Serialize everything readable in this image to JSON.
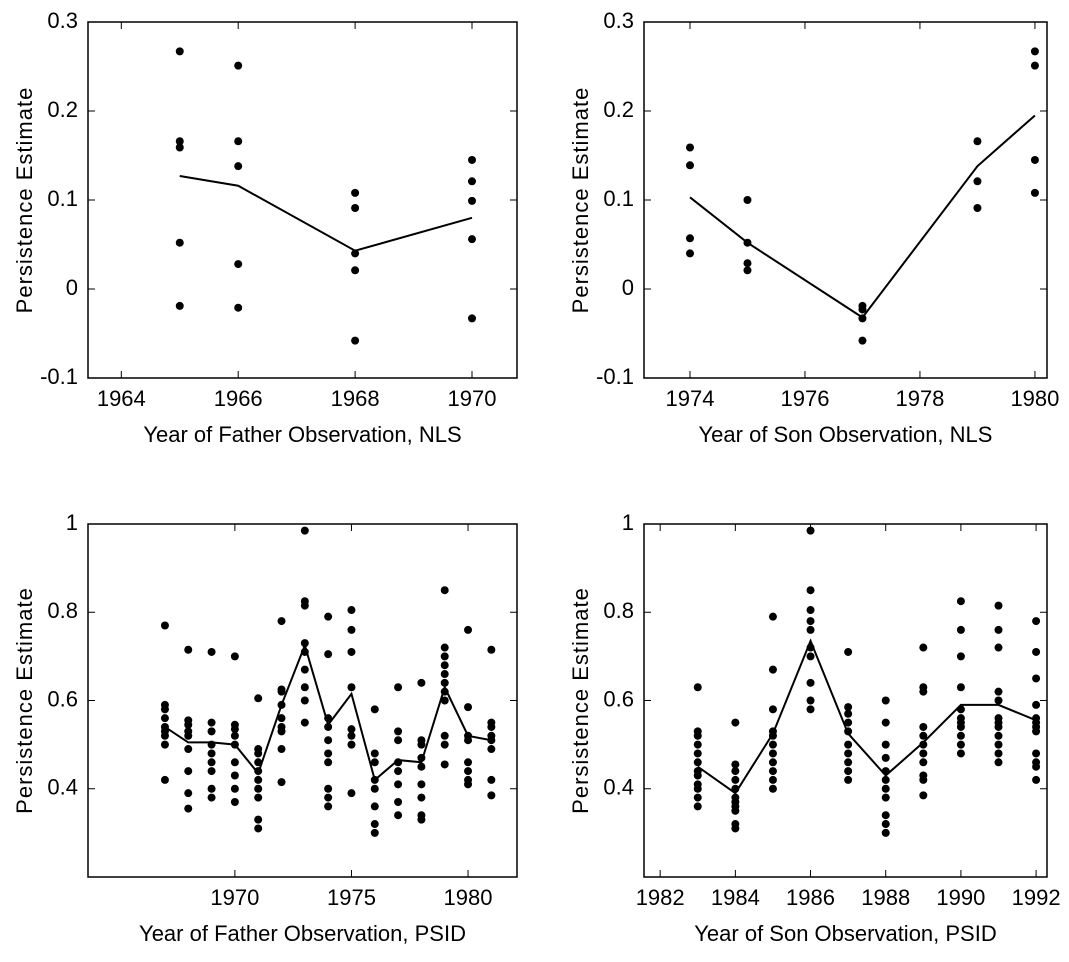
{
  "chart_data": [
    {
      "type": "scatter",
      "xlabel": "Year of Father Observation, NLS",
      "ylabel": "Persistence Estimate",
      "color": "#000000",
      "xlim": [
        1963.43,
        1970.77
      ],
      "ylim": [
        -0.1,
        0.3
      ],
      "xticks": [
        1964,
        1966,
        1968,
        1970
      ],
      "yticks": [
        -0.1,
        0,
        0.1,
        0.2,
        0.3
      ],
      "points": [
        {
          "x": 1965,
          "values": [
            0.267,
            0.166,
            0.159,
            0.052,
            -0.019
          ]
        },
        {
          "x": 1966,
          "values": [
            0.251,
            0.166,
            0.138,
            0.028,
            -0.021
          ]
        },
        {
          "x": 1968,
          "values": [
            0.108,
            0.091,
            0.04,
            0.021,
            -0.058
          ]
        },
        {
          "x": 1970,
          "values": [
            0.145,
            0.121,
            0.099,
            0.056,
            -0.033
          ]
        }
      ],
      "line": {
        "x": [
          1965,
          1966,
          1968,
          1970
        ],
        "y": [
          0.127,
          0.116,
          0.043,
          0.08
        ]
      }
    },
    {
      "type": "scatter",
      "xlabel": "Year of Son Observation, NLS",
      "ylabel": "Persistence Estimate",
      "color": "#000000",
      "xlim": [
        1973.2,
        1980.21
      ],
      "ylim": [
        -0.1,
        0.3
      ],
      "xticks": [
        1974,
        1976,
        1978,
        1980
      ],
      "yticks": [
        -0.1,
        0,
        0.1,
        0.2,
        0.3
      ],
      "points": [
        {
          "x": 1974,
          "values": [
            0.159,
            0.139,
            0.057,
            0.04
          ]
        },
        {
          "x": 1975,
          "values": [
            0.1,
            0.052,
            0.029,
            0.021
          ]
        },
        {
          "x": 1977,
          "values": [
            -0.019,
            -0.023,
            -0.033,
            -0.058
          ]
        },
        {
          "x": 1979,
          "values": [
            0.166,
            0.121,
            0.091
          ]
        },
        {
          "x": 1980,
          "values": [
            0.267,
            0.251,
            0.145,
            0.108
          ]
        }
      ],
      "line": {
        "x": [
          1974,
          1975,
          1977,
          1979,
          1980
        ],
        "y": [
          0.103,
          0.052,
          -0.032,
          0.138,
          0.195
        ]
      }
    },
    {
      "type": "scatter",
      "xlabel": "Year of Father Observation, PSID",
      "ylabel": "Persistence Estimate",
      "color": "#000000",
      "xlim": [
        1963.7,
        1982.1
      ],
      "ylim": [
        0.2,
        1
      ],
      "xticks": [
        1970,
        1975,
        1980
      ],
      "yticks": [
        0.4,
        0.6,
        0.8,
        1
      ],
      "points": [
        {
          "x": 1967,
          "values": [
            0.77,
            0.59,
            0.58,
            0.56,
            0.54,
            0.53,
            0.52,
            0.5,
            0.42
          ]
        },
        {
          "x": 1968,
          "values": [
            0.715,
            0.555,
            0.545,
            0.53,
            0.52,
            0.49,
            0.44,
            0.39,
            0.355
          ]
        },
        {
          "x": 1969,
          "values": [
            0.71,
            0.55,
            0.53,
            0.5,
            0.48,
            0.46,
            0.44,
            0.4,
            0.38
          ]
        },
        {
          "x": 1970,
          "values": [
            0.7,
            0.545,
            0.535,
            0.52,
            0.5,
            0.46,
            0.43,
            0.4,
            0.37
          ]
        },
        {
          "x": 1971,
          "values": [
            0.605,
            0.49,
            0.48,
            0.46,
            0.44,
            0.42,
            0.4,
            0.38,
            0.33,
            0.31
          ]
        },
        {
          "x": 1972,
          "values": [
            0.78,
            0.625,
            0.62,
            0.59,
            0.56,
            0.54,
            0.53,
            0.49,
            0.415
          ]
        },
        {
          "x": 1973,
          "values": [
            0.985,
            0.825,
            0.815,
            0.73,
            0.71,
            0.67,
            0.63,
            0.6,
            0.55
          ]
        },
        {
          "x": 1974,
          "values": [
            0.79,
            0.705,
            0.56,
            0.54,
            0.51,
            0.48,
            0.46,
            0.4,
            0.38,
            0.36
          ]
        },
        {
          "x": 1975,
          "values": [
            0.805,
            0.76,
            0.71,
            0.63,
            0.535,
            0.52,
            0.5,
            0.39
          ]
        },
        {
          "x": 1976,
          "values": [
            0.58,
            0.48,
            0.46,
            0.42,
            0.4,
            0.36,
            0.32,
            0.3
          ]
        },
        {
          "x": 1977,
          "values": [
            0.63,
            0.53,
            0.51,
            0.46,
            0.44,
            0.41,
            0.37,
            0.34
          ]
        },
        {
          "x": 1978,
          "values": [
            0.64,
            0.51,
            0.5,
            0.47,
            0.45,
            0.41,
            0.38,
            0.34,
            0.33
          ]
        },
        {
          "x": 1979,
          "values": [
            0.85,
            0.72,
            0.7,
            0.68,
            0.66,
            0.64,
            0.62,
            0.6,
            0.52,
            0.5,
            0.455
          ]
        },
        {
          "x": 1980,
          "values": [
            0.76,
            0.585,
            0.52,
            0.51,
            0.46,
            0.44,
            0.42,
            0.41
          ]
        },
        {
          "x": 1981,
          "values": [
            0.715,
            0.55,
            0.54,
            0.52,
            0.51,
            0.49,
            0.42,
            0.385
          ]
        }
      ],
      "line": {
        "x": [
          1967,
          1968,
          1969,
          1970,
          1971,
          1972,
          1973,
          1974,
          1975,
          1976,
          1977,
          1978,
          1979,
          1980,
          1981
        ],
        "y": [
          0.54,
          0.505,
          0.505,
          0.5,
          0.435,
          0.59,
          0.725,
          0.545,
          0.615,
          0.42,
          0.465,
          0.46,
          0.63,
          0.52,
          0.51
        ]
      }
    },
    {
      "type": "scatter",
      "xlabel": "Year of Son Observation, PSID",
      "ylabel": "Persistence Estimate",
      "color": "#000000",
      "xlim": [
        1981.57,
        1992.29
      ],
      "ylim": [
        0.2,
        1
      ],
      "xticks": [
        1982,
        1984,
        1986,
        1988,
        1990,
        1992
      ],
      "yticks": [
        0.4,
        0.6,
        0.8,
        1
      ],
      "points": [
        {
          "x": 1983,
          "values": [
            0.63,
            0.53,
            0.52,
            0.5,
            0.48,
            0.46,
            0.44,
            0.43,
            0.41,
            0.4,
            0.38,
            0.36
          ]
        },
        {
          "x": 1984,
          "values": [
            0.55,
            0.455,
            0.44,
            0.42,
            0.4,
            0.38,
            0.37,
            0.36,
            0.35,
            0.32,
            0.31
          ]
        },
        {
          "x": 1985,
          "values": [
            0.79,
            0.67,
            0.58,
            0.53,
            0.52,
            0.5,
            0.48,
            0.46,
            0.44,
            0.42,
            0.4
          ]
        },
        {
          "x": 1986,
          "values": [
            0.985,
            0.85,
            0.805,
            0.78,
            0.76,
            0.72,
            0.7,
            0.64,
            0.6,
            0.58
          ]
        },
        {
          "x": 1987,
          "values": [
            0.71,
            0.585,
            0.57,
            0.55,
            0.53,
            0.5,
            0.48,
            0.46,
            0.44,
            0.42
          ]
        },
        {
          "x": 1988,
          "values": [
            0.6,
            0.55,
            0.5,
            0.47,
            0.44,
            0.42,
            0.4,
            0.38,
            0.34,
            0.32,
            0.3
          ]
        },
        {
          "x": 1989,
          "values": [
            0.72,
            0.63,
            0.62,
            0.54,
            0.52,
            0.5,
            0.48,
            0.46,
            0.43,
            0.42,
            0.385
          ]
        },
        {
          "x": 1990,
          "values": [
            0.825,
            0.76,
            0.7,
            0.63,
            0.58,
            0.56,
            0.55,
            0.54,
            0.52,
            0.5,
            0.48
          ]
        },
        {
          "x": 1991,
          "values": [
            0.815,
            0.76,
            0.72,
            0.62,
            0.6,
            0.56,
            0.55,
            0.54,
            0.52,
            0.5,
            0.48,
            0.46
          ]
        },
        {
          "x": 1992,
          "values": [
            0.78,
            0.71,
            0.65,
            0.59,
            0.56,
            0.55,
            0.54,
            0.53,
            0.48,
            0.46,
            0.45,
            0.42
          ]
        }
      ],
      "line": {
        "x": [
          1983,
          1984,
          1985,
          1986,
          1987,
          1988,
          1989,
          1990,
          1991,
          1992
        ],
        "y": [
          0.45,
          0.39,
          0.525,
          0.735,
          0.525,
          0.43,
          0.505,
          0.59,
          0.59,
          0.555
        ]
      }
    }
  ]
}
